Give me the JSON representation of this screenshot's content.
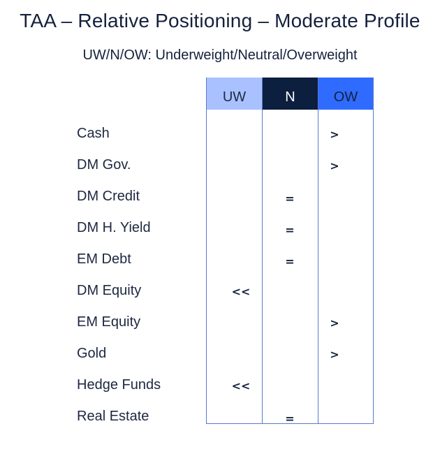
{
  "title": "TAA – Relative Positioning – Moderate Profile",
  "subtitle": "UW/N/OW: Underweight/Neutral/Overweight",
  "chart_data": {
    "type": "table",
    "columns": [
      {
        "key": "UW",
        "label": "UW",
        "header_bg": "#a9c1ff",
        "header_fg": "#1e2a44"
      },
      {
        "key": "N",
        "label": "N",
        "header_bg": "#0d1f3f",
        "header_fg": "#ffffff"
      },
      {
        "key": "OW",
        "label": "OW",
        "header_bg": "#2f6bff",
        "header_fg": "#14213d"
      }
    ],
    "rows": [
      {
        "asset": "Cash",
        "column": "OW",
        "signal": ">"
      },
      {
        "asset": "DM Gov.",
        "column": "OW",
        "signal": ">"
      },
      {
        "asset": "DM Credit",
        "column": "N",
        "signal": "="
      },
      {
        "asset": "DM H. Yield",
        "column": "N",
        "signal": "="
      },
      {
        "asset": "EM Debt",
        "column": "N",
        "signal": "="
      },
      {
        "asset": "DM Equity",
        "column": "UW",
        "signal": "<<"
      },
      {
        "asset": "EM Equity",
        "column": "OW",
        "signal": ">"
      },
      {
        "asset": "Gold",
        "column": "OW",
        "signal": ">"
      },
      {
        "asset": "Hedge Funds",
        "column": "UW",
        "signal": "<<"
      },
      {
        "asset": "Real Estate",
        "column": "N",
        "signal": "="
      }
    ]
  }
}
